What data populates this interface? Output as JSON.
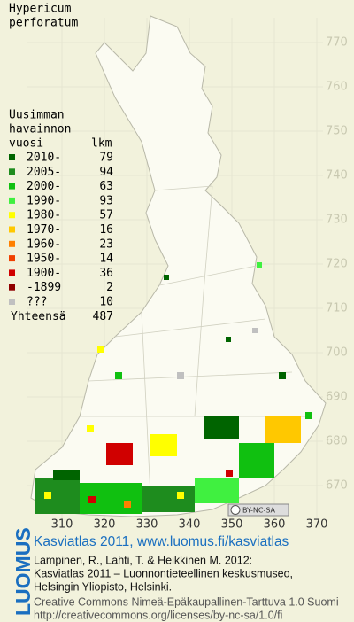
{
  "map": {
    "title": [
      "Hypericum",
      "perforatum"
    ],
    "legend": {
      "heading": [
        "Uusimman",
        "havainnon",
        "vuosi"
      ],
      "count_heading": "lkm",
      "entries": [
        {
          "label": "2010-",
          "count": 79,
          "color": "#006400"
        },
        {
          "label": "2005-",
          "count": 94,
          "color": "#1e8c1e"
        },
        {
          "label": "2000-",
          "count": 63,
          "color": "#10c010"
        },
        {
          "label": "1990-",
          "count": 93,
          "color": "#40f040"
        },
        {
          "label": "1980-",
          "count": 57,
          "color": "#ffff00"
        },
        {
          "label": "1970-",
          "count": 16,
          "color": "#ffc800"
        },
        {
          "label": "1960-",
          "count": 23,
          "color": "#ff8000"
        },
        {
          "label": "1950-",
          "count": 14,
          "color": "#f04000"
        },
        {
          "label": "1900-",
          "count": 36,
          "color": "#d00000"
        },
        {
          "label": "-1899",
          "count": 2,
          "color": "#900000"
        },
        {
          "label": "???",
          "count": 10,
          "color": "#c0c0c0"
        }
      ],
      "total_label": "Yhteensä",
      "total": 487
    },
    "yticks": [
      770,
      760,
      750,
      740,
      730,
      720,
      710,
      700,
      690,
      680,
      670
    ],
    "xticks": [
      310,
      320,
      330,
      340,
      350,
      360,
      370
    ],
    "license_badge": "BY-NC-SA"
  },
  "footer": {
    "logo": "LUOMUS",
    "headline": "Kasviatlas 2011, www.luomus.fi/kasviatlas",
    "citation": [
      "Lampinen, R., Lahti, T. & Heikkinen M. 2012:",
      "Kasviatlas 2011 – Luonnontieteellinen keskusmuseo,",
      "Helsingin Yliopisto, Helsinki."
    ],
    "license": [
      "Creative Commons Nimeä-Epäkaupallinen-Tarttuva 1.0 Suomi",
      "http://creativecommons.org/licenses/by-nc-sa/1.0/fi"
    ]
  }
}
